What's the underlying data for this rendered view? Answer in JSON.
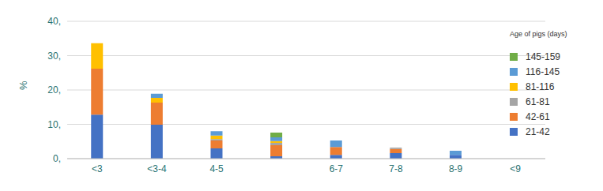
{
  "chart_data": {
    "type": "bar",
    "stacked": true,
    "grid": true,
    "legend": "right",
    "legend_title": "Age of pigs (days)",
    "y_label": "%",
    "categories": [
      "<3",
      "<3-4",
      "4-5",
      null,
      "6-7",
      "7-8",
      "8-9",
      "<9"
    ],
    "ylim": [
      0,
      40
    ],
    "yticks": [
      {
        "value": 0,
        "label": "0,"
      },
      {
        "value": 10,
        "label": "10,"
      },
      {
        "value": 20,
        "label": "20,"
      },
      {
        "value": 30,
        "label": "30,"
      },
      {
        "value": 40,
        "label": "40,"
      }
    ],
    "series": [
      {
        "name": "21-42",
        "color": "#4472c4",
        "values": [
          12.8,
          9.9,
          3.0,
          0.7,
          1.1,
          1.6,
          1.1,
          0
        ]
      },
      {
        "name": "42-61",
        "color": "#ed7d31",
        "values": [
          13.4,
          6.4,
          2.3,
          3.2,
          2.3,
          1.2,
          0,
          0
        ]
      },
      {
        "name": "61-81",
        "color": "#a5a5a5",
        "values": [
          0,
          0,
          0.4,
          0.7,
          0,
          0.4,
          0,
          0
        ]
      },
      {
        "name": "81-116",
        "color": "#ffc000",
        "values": [
          7.4,
          1.4,
          1.0,
          0.5,
          0,
          0,
          0,
          0
        ]
      },
      {
        "name": "116-145",
        "color": "#5b9bd5",
        "values": [
          0,
          1.2,
          1.3,
          1.1,
          1.9,
          0,
          1.2,
          0
        ]
      },
      {
        "name": "145-159",
        "color": "#70ad47",
        "values": [
          0,
          0,
          0,
          1.4,
          0,
          0,
          0,
          0
        ]
      }
    ]
  }
}
